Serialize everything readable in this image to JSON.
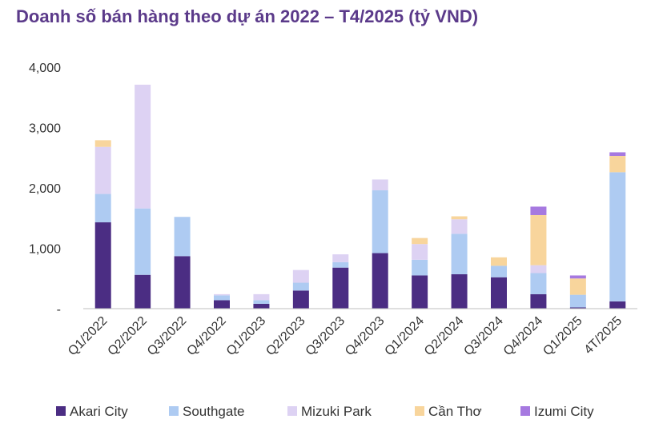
{
  "chart_data": {
    "type": "bar",
    "stacked": true,
    "title": "Doanh số bán hàng theo dự án 2022 – T4/2025 (tỷ VND)",
    "xlabel": "",
    "ylabel": "",
    "ylim": [
      0,
      4000
    ],
    "yticks": [
      "-",
      "1,000",
      "2,000",
      "3,000",
      "4,000"
    ],
    "grid": false,
    "legend_position": "bottom",
    "categories": [
      "Q1/2022",
      "Q2/2022",
      "Q3/2022",
      "Q4/2022",
      "Q1/2023",
      "Q2/2023",
      "Q3/2023",
      "Q4/2023",
      "Q1/2024",
      "Q2/2024",
      "Q3/2024",
      "Q4/2024",
      "Q1/2025",
      "4T/2025"
    ],
    "series": [
      {
        "name": "Akari City",
        "color": "#4b2d83",
        "values": [
          1430,
          560,
          870,
          140,
          80,
          300,
          680,
          920,
          550,
          570,
          520,
          240,
          20,
          120
        ]
      },
      {
        "name": "Southgate",
        "color": "#aecbf2",
        "values": [
          470,
          1100,
          650,
          80,
          60,
          130,
          90,
          1040,
          260,
          670,
          190,
          350,
          210,
          2140
        ]
      },
      {
        "name": "Mizuki Park",
        "color": "#ddd2f3",
        "values": [
          780,
          2050,
          0,
          20,
          100,
          210,
          130,
          180,
          260,
          240,
          0,
          130,
          0,
          0
        ]
      },
      {
        "name": "Cần Thơ",
        "color": "#f8d59c",
        "values": [
          110,
          0,
          0,
          0,
          0,
          0,
          0,
          0,
          100,
          50,
          140,
          830,
          270,
          270
        ]
      },
      {
        "name": "Izumi City",
        "color": "#a679e0",
        "values": [
          0,
          0,
          0,
          0,
          0,
          0,
          0,
          0,
          0,
          0,
          0,
          140,
          50,
          60
        ]
      }
    ]
  }
}
